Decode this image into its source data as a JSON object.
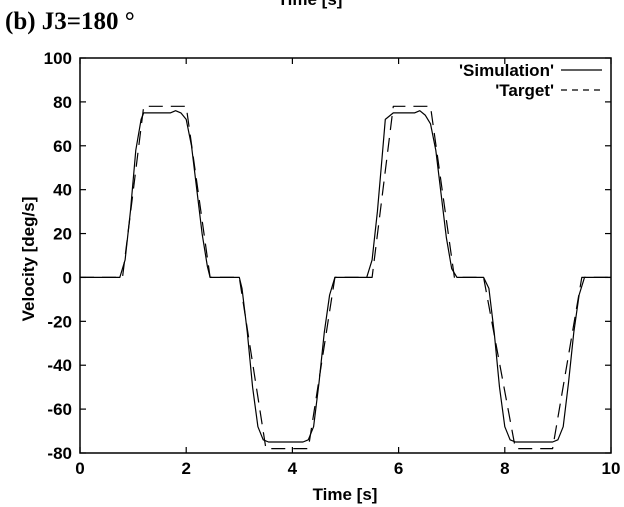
{
  "panel_label": "(b) J3=180 °",
  "cut_off_header": "Time [s]",
  "chart_data": {
    "type": "line",
    "title": "",
    "xlabel": "Time [s]",
    "ylabel": "Velocity [deg/s]",
    "xlim": [
      0,
      10
    ],
    "ylim": [
      -80,
      100
    ],
    "xticks": [
      0,
      2,
      4,
      6,
      8,
      10
    ],
    "yticks": [
      -80,
      -60,
      -40,
      -20,
      0,
      20,
      40,
      60,
      80,
      100
    ],
    "grid": false,
    "legend_position": "top-right",
    "series": [
      {
        "name": "'Simulation'",
        "style": "solid",
        "color": "#000000",
        "x": [
          0,
          0.3,
          0.6,
          0.75,
          0.85,
          0.95,
          1.05,
          1.15,
          1.2,
          1.3,
          1.5,
          1.7,
          1.8,
          1.9,
          2.0,
          2.1,
          2.2,
          2.3,
          2.4,
          2.45,
          2.6,
          2.8,
          3.0,
          3.05,
          3.15,
          3.25,
          3.35,
          3.45,
          3.55,
          3.6,
          3.8,
          4.0,
          4.2,
          4.3,
          4.4,
          4.5,
          4.6,
          4.7,
          4.8,
          4.9,
          5.1,
          5.2,
          5.3,
          5.4,
          5.5,
          5.6,
          5.7,
          5.75,
          5.9,
          6.1,
          6.3,
          6.4,
          6.5,
          6.6,
          6.7,
          6.8,
          6.9,
          7.0,
          7.1,
          7.3,
          7.5,
          7.6,
          7.7,
          7.8,
          7.9,
          8.0,
          8.1,
          8.2,
          8.3,
          8.5,
          8.7,
          8.9,
          9.0,
          9.1,
          9.2,
          9.3,
          9.4,
          9.5,
          9.7,
          10.0
        ],
        "y": [
          0,
          0,
          0,
          0,
          8,
          30,
          58,
          72,
          75,
          75,
          75,
          75,
          76,
          75,
          72,
          60,
          40,
          20,
          5,
          0,
          0,
          0,
          0,
          -5,
          -25,
          -50,
          -68,
          -74,
          -75,
          -75,
          -75,
          -75,
          -75,
          -74,
          -68,
          -48,
          -25,
          -8,
          0,
          0,
          0,
          0,
          0,
          0,
          8,
          30,
          58,
          72,
          75,
          75,
          75,
          76,
          74,
          70,
          58,
          38,
          18,
          4,
          0,
          0,
          0,
          0,
          -5,
          -25,
          -50,
          -68,
          -74,
          -75,
          -75,
          -75,
          -75,
          -75,
          -74,
          -68,
          -48,
          -25,
          -8,
          0,
          0,
          0
        ]
      },
      {
        "name": "'Target'",
        "style": "dashed",
        "color": "#000000",
        "x": [
          0,
          0.8,
          1.2,
          2.0,
          2.45,
          3.0,
          3.5,
          4.3,
          4.8,
          5.5,
          5.9,
          6.6,
          7.05,
          7.6,
          8.2,
          8.9,
          9.45,
          10.0
        ],
        "y": [
          0,
          0,
          78,
          78,
          0,
          0,
          -78,
          -78,
          0,
          0,
          78,
          78,
          0,
          0,
          -78,
          -78,
          0,
          0
        ]
      }
    ]
  }
}
